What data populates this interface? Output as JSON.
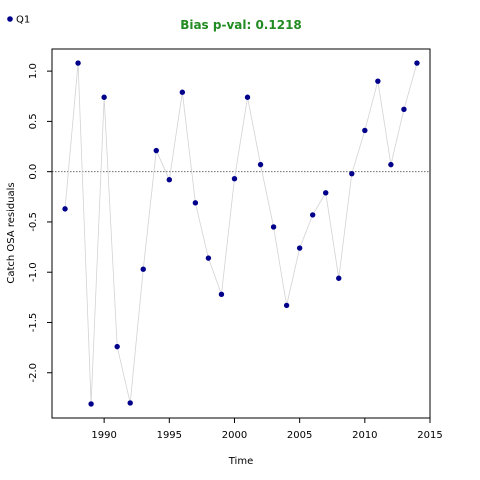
{
  "chart_data": {
    "type": "line",
    "title": "Bias p-val: 0.1218",
    "title_color": "#228B22",
    "xlabel": "Time",
    "ylabel": "Catch OSA residuals",
    "xlim": [
      1986,
      2015
    ],
    "ylim": [
      -2.45,
      1.22
    ],
    "xticks": [
      1990,
      1995,
      2000,
      2005,
      2010,
      2015
    ],
    "yticks": [
      -2.0,
      -1.5,
      -1.0,
      -0.5,
      0.0,
      0.5,
      1.0
    ],
    "ytick_labels": [
      "-2.0",
      "-1.5",
      "-1.0",
      "-0.5",
      "0.0",
      "0.5",
      "1.0"
    ],
    "reference_line": 0.0,
    "grid": false,
    "legend_position": "top-left",
    "series": [
      {
        "name": "Q1",
        "color": "#00008B",
        "line_color": "#D3D3D3",
        "x": [
          1987,
          1988,
          1989,
          1990,
          1991,
          1992,
          1993,
          1994,
          1995,
          1996,
          1997,
          1998,
          1999,
          2000,
          2001,
          2002,
          2003,
          2004,
          2005,
          2006,
          2007,
          2008,
          2009,
          2010,
          2011,
          2012,
          2013,
          2014
        ],
        "y": [
          -0.37,
          1.08,
          -2.31,
          0.74,
          -1.74,
          -2.3,
          -0.97,
          0.21,
          -0.08,
          0.79,
          -0.31,
          -0.86,
          -1.22,
          -0.07,
          0.74,
          0.07,
          -0.55,
          -1.33,
          -0.76,
          -0.43,
          -0.21,
          -1.06,
          -0.02,
          0.41,
          0.9,
          0.07,
          0.62,
          1.08
        ]
      }
    ]
  }
}
